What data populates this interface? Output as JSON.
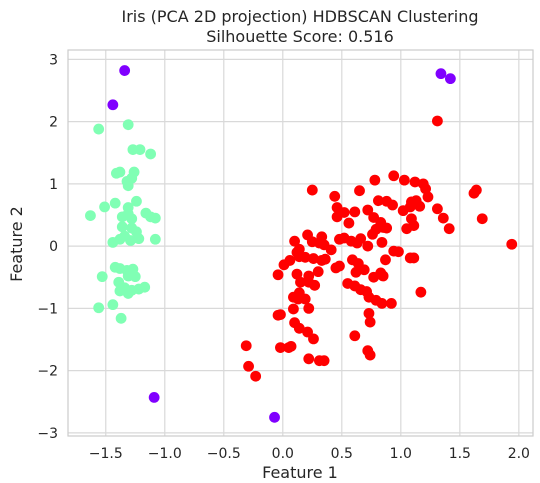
{
  "chart_data": {
    "type": "scatter",
    "title": "Iris (PCA 2D projection) HDBSCAN Clustering",
    "subtitle": "Silhouette Score: 0.516",
    "xlabel": "Feature 1",
    "ylabel": "Feature 2",
    "xlim": [
      -1.82,
      2.12
    ],
    "ylim": [
      -3.05,
      3.15
    ],
    "xticks": [
      -1.5,
      -1.0,
      -0.5,
      0.0,
      0.5,
      1.0,
      1.5,
      2.0
    ],
    "xtick_labels": [
      "−1.5",
      "−1.0",
      "−0.5",
      "0.0",
      "0.5",
      "1.0",
      "1.5",
      "2.0"
    ],
    "yticks": [
      -3,
      -2,
      -1,
      0,
      1,
      2,
      3
    ],
    "ytick_labels": [
      "−3",
      "−2",
      "−1",
      "0",
      "1",
      "2",
      "3"
    ],
    "grid": true,
    "legend": "none",
    "series": [
      {
        "color": "#8000ff",
        "points": [
          [
            -1.34,
            2.82
          ],
          [
            -1.44,
            2.27
          ],
          [
            1.34,
            2.77
          ],
          [
            1.42,
            2.69
          ],
          [
            -1.09,
            -2.43
          ],
          [
            -0.07,
            -2.75
          ]
        ]
      },
      {
        "color": "#80ffb4",
        "points": [
          [
            -1.31,
            1.95
          ],
          [
            -1.56,
            1.88
          ],
          [
            -1.27,
            1.55
          ],
          [
            -1.21,
            1.55
          ],
          [
            -1.12,
            1.48
          ],
          [
            -1.38,
            1.19
          ],
          [
            -1.41,
            1.17
          ],
          [
            -1.32,
            1.04
          ],
          [
            -1.28,
            1.09
          ],
          [
            -1.26,
            1.19
          ],
          [
            -1.31,
            0.97
          ],
          [
            -1.42,
            0.69
          ],
          [
            -1.51,
            0.63
          ],
          [
            -1.31,
            0.62
          ],
          [
            -1.24,
            0.72
          ],
          [
            -1.63,
            0.49
          ],
          [
            -1.36,
            0.47
          ],
          [
            -1.31,
            0.52
          ],
          [
            -1.28,
            0.44
          ],
          [
            -1.16,
            0.53
          ],
          [
            -1.12,
            0.47
          ],
          [
            -1.08,
            0.45
          ],
          [
            -1.36,
            0.31
          ],
          [
            -1.28,
            0.29
          ],
          [
            -1.24,
            0.23
          ],
          [
            -1.34,
            0.16
          ],
          [
            -1.29,
            0.09
          ],
          [
            -1.44,
            0.06
          ],
          [
            -1.38,
            0.11
          ],
          [
            -1.22,
            0.12
          ],
          [
            -1.08,
            0.11
          ],
          [
            -1.42,
            -0.34
          ],
          [
            -1.38,
            -0.36
          ],
          [
            -1.32,
            -0.39
          ],
          [
            -1.27,
            -0.37
          ],
          [
            -1.53,
            -0.49
          ],
          [
            -1.31,
            -0.48
          ],
          [
            -1.25,
            -0.49
          ],
          [
            -1.39,
            -0.58
          ],
          [
            -1.34,
            -0.67
          ],
          [
            -1.28,
            -0.71
          ],
          [
            -1.22,
            -0.69
          ],
          [
            -1.17,
            -0.66
          ],
          [
            -1.38,
            -0.72
          ],
          [
            -1.31,
            -0.76
          ],
          [
            -1.44,
            -0.94
          ],
          [
            -1.56,
            -0.99
          ],
          [
            -1.37,
            -1.16
          ]
        ]
      },
      {
        "color": "#ff0000",
        "points": [
          [
            1.31,
            2.01
          ],
          [
            0.25,
            0.9
          ],
          [
            0.44,
            0.8
          ],
          [
            0.65,
            0.89
          ],
          [
            0.78,
            1.06
          ],
          [
            0.94,
            1.13
          ],
          [
            1.03,
            1.06
          ],
          [
            1.12,
            1.03
          ],
          [
            1.19,
            1.0
          ],
          [
            1.21,
            0.92
          ],
          [
            0.46,
            0.62
          ],
          [
            0.46,
            0.47
          ],
          [
            0.52,
            0.54
          ],
          [
            0.61,
            0.55
          ],
          [
            0.72,
            0.58
          ],
          [
            0.81,
            0.73
          ],
          [
            0.88,
            0.72
          ],
          [
            0.93,
            0.66
          ],
          [
            1.02,
            0.57
          ],
          [
            1.09,
            0.71
          ],
          [
            1.13,
            0.73
          ],
          [
            1.08,
            0.63
          ],
          [
            1.16,
            0.64
          ],
          [
            1.23,
            0.79
          ],
          [
            1.31,
            0.6
          ],
          [
            1.36,
            0.45
          ],
          [
            1.41,
            0.28
          ],
          [
            1.62,
            0.85
          ],
          [
            1.64,
            0.9
          ],
          [
            1.69,
            0.44
          ],
          [
            1.94,
            0.03
          ],
          [
            0.77,
            0.46
          ],
          [
            0.83,
            0.38
          ],
          [
            0.85,
            0.3
          ],
          [
            0.79,
            0.27
          ],
          [
            0.76,
            0.19
          ],
          [
            0.88,
            0.29
          ],
          [
            1.09,
            0.44
          ],
          [
            1.11,
            0.33
          ],
          [
            1.05,
            0.28
          ],
          [
            1.08,
            -0.19
          ],
          [
            1.11,
            -0.19
          ],
          [
            0.98,
            -0.09
          ],
          [
            0.56,
            0.37
          ],
          [
            0.52,
            0.13
          ],
          [
            0.48,
            0.11
          ],
          [
            0.58,
            0.08
          ],
          [
            0.63,
            0.05
          ],
          [
            0.66,
            0.12
          ],
          [
            0.72,
            0.0
          ],
          [
            0.84,
            0.06
          ],
          [
            0.94,
            -0.08
          ],
          [
            0.87,
            -0.22
          ],
          [
            0.83,
            -0.43
          ],
          [
            0.77,
            -0.5
          ],
          [
            0.85,
            -0.48
          ],
          [
            0.69,
            -0.38
          ],
          [
            0.64,
            -0.28
          ],
          [
            0.59,
            -0.22
          ],
          [
            0.62,
            -0.42
          ],
          [
            0.55,
            -0.6
          ],
          [
            0.61,
            -0.64
          ],
          [
            0.66,
            -0.7
          ],
          [
            0.71,
            -0.73
          ],
          [
            0.73,
            -0.82
          ],
          [
            0.79,
            -0.87
          ],
          [
            0.84,
            -0.92
          ],
          [
            0.92,
            -0.92
          ],
          [
            1.17,
            -0.74
          ],
          [
            0.73,
            -1.08
          ],
          [
            0.74,
            -1.22
          ],
          [
            0.61,
            -1.44
          ],
          [
            0.72,
            -1.68
          ],
          [
            0.74,
            -1.75
          ],
          [
            0.41,
            -0.06
          ],
          [
            0.35,
            0.02
          ],
          [
            0.31,
            0.05
          ],
          [
            0.33,
            0.15
          ],
          [
            0.25,
            0.07
          ],
          [
            0.21,
            0.18
          ],
          [
            0.14,
            -0.05
          ],
          [
            0.1,
            0.08
          ],
          [
            0.12,
            -0.1
          ],
          [
            0.14,
            -0.17
          ],
          [
            0.19,
            -0.18
          ],
          [
            0.26,
            -0.2
          ],
          [
            0.33,
            -0.23
          ],
          [
            0.36,
            -0.21
          ],
          [
            0.45,
            -0.35
          ],
          [
            0.48,
            -0.32
          ],
          [
            0.3,
            -0.41
          ],
          [
            0.22,
            -0.48
          ],
          [
            0.12,
            -0.45
          ],
          [
            0.15,
            -0.58
          ],
          [
            0.22,
            -0.58
          ],
          [
            0.27,
            -0.63
          ],
          [
            0.14,
            -0.75
          ],
          [
            0.09,
            -0.82
          ],
          [
            0.13,
            -0.85
          ],
          [
            0.19,
            -0.85
          ],
          [
            0.22,
            -1.0
          ],
          [
            0.09,
            -1.01
          ],
          [
            -0.04,
            -1.11
          ],
          [
            -0.02,
            -1.1
          ],
          [
            0.1,
            -1.23
          ],
          [
            0.14,
            -1.32
          ],
          [
            0.21,
            -1.38
          ],
          [
            0.26,
            -1.49
          ],
          [
            0.07,
            -1.61
          ],
          [
            -0.02,
            -1.63
          ],
          [
            0.05,
            -1.63
          ],
          [
            0.22,
            -1.81
          ],
          [
            0.31,
            -1.84
          ],
          [
            0.35,
            -1.84
          ],
          [
            -0.31,
            -1.6
          ],
          [
            -0.29,
            -1.93
          ],
          [
            -0.23,
            -2.09
          ],
          [
            -0.04,
            -0.46
          ],
          [
            0.01,
            -0.3
          ],
          [
            0.06,
            -0.23
          ]
        ]
      }
    ]
  }
}
